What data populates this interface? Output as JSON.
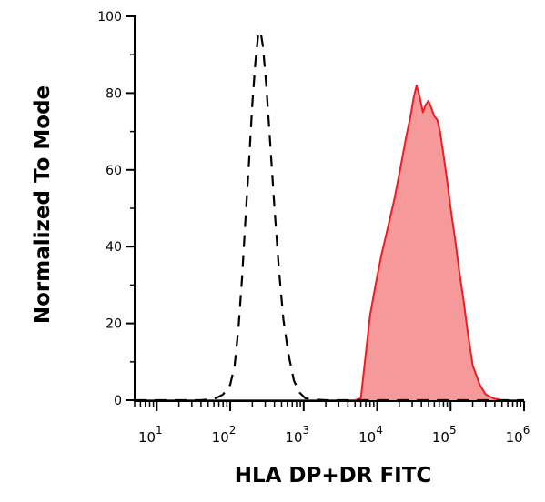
{
  "chart_data": {
    "type": "area",
    "title": "",
    "xlabel": "HLA DP+DR  FITC",
    "ylabel": "Normalized To Mode",
    "x_scale": "log",
    "xlim": [
      5,
      1000000
    ],
    "ylim": [
      0,
      100
    ],
    "y_ticks": [
      {
        "value": 0,
        "label": "0"
      },
      {
        "value": 20,
        "label": "20"
      },
      {
        "value": 40,
        "label": "40"
      },
      {
        "value": 60,
        "label": "60"
      },
      {
        "value": 80,
        "label": "80"
      },
      {
        "value": 100,
        "label": "100"
      }
    ],
    "x_ticks": [
      {
        "value": 10,
        "base": "10",
        "exp": "1"
      },
      {
        "value": 100,
        "base": "10",
        "exp": "2"
      },
      {
        "value": 1000,
        "base": "10",
        "exp": "3"
      },
      {
        "value": 10000,
        "base": "10",
        "exp": "4"
      },
      {
        "value": 100000,
        "base": "10",
        "exp": "5"
      },
      {
        "value": 1000000,
        "base": "10",
        "exp": "6"
      }
    ],
    "grid": false,
    "series": [
      {
        "style": "dashed-unfilled",
        "color": "#000000",
        "points": [
          [
            5,
            0
          ],
          [
            25,
            0
          ],
          [
            40,
            0
          ],
          [
            55,
            0.3
          ],
          [
            65,
            0.6
          ],
          [
            80,
            1.5
          ],
          [
            100,
            4
          ],
          [
            115,
            9
          ],
          [
            130,
            19
          ],
          [
            145,
            32
          ],
          [
            160,
            46
          ],
          [
            180,
            62
          ],
          [
            200,
            77
          ],
          [
            220,
            88
          ],
          [
            240,
            95
          ],
          [
            260,
            96
          ],
          [
            280,
            92
          ],
          [
            310,
            82
          ],
          [
            350,
            67
          ],
          [
            400,
            50
          ],
          [
            460,
            34
          ],
          [
            530,
            21
          ],
          [
            620,
            12
          ],
          [
            740,
            5
          ],
          [
            880,
            2
          ],
          [
            1050,
            0.5
          ],
          [
            1300,
            0.2
          ],
          [
            2000,
            0
          ],
          [
            4000,
            0
          ],
          [
            20000,
            0
          ],
          [
            300000,
            0
          ],
          [
            1000000,
            0
          ]
        ]
      },
      {
        "style": "filled",
        "color": "#ee1d23",
        "fill": "#f6999b",
        "points": [
          [
            5,
            0
          ],
          [
            1000,
            0
          ],
          [
            5000,
            0
          ],
          [
            6000,
            0.5
          ],
          [
            7000,
            12
          ],
          [
            8000,
            22
          ],
          [
            9500,
            30
          ],
          [
            11500,
            38
          ],
          [
            14000,
            45
          ],
          [
            17000,
            52
          ],
          [
            20500,
            60
          ],
          [
            24500,
            68
          ],
          [
            28500,
            74
          ],
          [
            31500,
            79
          ],
          [
            34500,
            82
          ],
          [
            38000,
            79
          ],
          [
            42000,
            75
          ],
          [
            46000,
            77
          ],
          [
            50000,
            78
          ],
          [
            55000,
            76
          ],
          [
            60000,
            74
          ],
          [
            66000,
            73
          ],
          [
            72000,
            70
          ],
          [
            80000,
            64
          ],
          [
            90000,
            57
          ],
          [
            100000,
            50
          ],
          [
            115000,
            42
          ],
          [
            130000,
            34
          ],
          [
            150000,
            26
          ],
          [
            170000,
            18
          ],
          [
            200000,
            9
          ],
          [
            250000,
            4
          ],
          [
            300000,
            1.5
          ],
          [
            380000,
            0.5
          ],
          [
            480000,
            0
          ],
          [
            1000000,
            0
          ]
        ]
      }
    ]
  }
}
